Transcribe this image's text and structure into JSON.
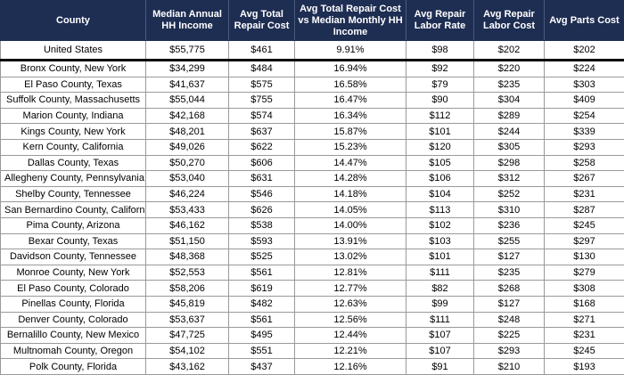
{
  "table": {
    "columns": [
      "County",
      "Median Annual HH Income",
      "Avg Total Repair Cost",
      "Avg Total Repair Cost vs Median Monthly HH Income",
      "Avg Repair Labor Rate",
      "Avg Repair Labor Cost",
      "Avg Parts Cost"
    ],
    "summary": [
      "United States",
      "$55,775",
      "$461",
      "9.91%",
      "$98",
      "$202",
      "$202"
    ],
    "rows": [
      [
        "Bronx County, New York",
        "$34,299",
        "$484",
        "16.94%",
        "$92",
        "$220",
        "$224"
      ],
      [
        "El Paso County, Texas",
        "$41,637",
        "$575",
        "16.58%",
        "$79",
        "$235",
        "$303"
      ],
      [
        "Suffolk County, Massachusetts",
        "$55,044",
        "$755",
        "16.47%",
        "$90",
        "$304",
        "$409"
      ],
      [
        "Marion County, Indiana",
        "$42,168",
        "$574",
        "16.34%",
        "$112",
        "$289",
        "$254"
      ],
      [
        "Kings County, New York",
        "$48,201",
        "$637",
        "15.87%",
        "$101",
        "$244",
        "$339"
      ],
      [
        "Kern County, California",
        "$49,026",
        "$622",
        "15.23%",
        "$120",
        "$305",
        "$293"
      ],
      [
        "Dallas County, Texas",
        "$50,270",
        "$606",
        "14.47%",
        "$105",
        "$298",
        "$258"
      ],
      [
        "Allegheny County, Pennsylvania",
        "$53,040",
        "$631",
        "14.28%",
        "$106",
        "$312",
        "$267"
      ],
      [
        "Shelby County, Tennessee",
        "$46,224",
        "$546",
        "14.18%",
        "$104",
        "$252",
        "$231"
      ],
      [
        "San Bernardino County, California",
        "$53,433",
        "$626",
        "14.05%",
        "$113",
        "$310",
        "$287"
      ],
      [
        "Pima County, Arizona",
        "$46,162",
        "$538",
        "14.00%",
        "$102",
        "$236",
        "$245"
      ],
      [
        "Bexar County, Texas",
        "$51,150",
        "$593",
        "13.91%",
        "$103",
        "$255",
        "$297"
      ],
      [
        "Davidson County, Tennessee",
        "$48,368",
        "$525",
        "13.02%",
        "$101",
        "$127",
        "$130"
      ],
      [
        "Monroe County, New York",
        "$52,553",
        "$561",
        "12.81%",
        "$111",
        "$235",
        "$279"
      ],
      [
        "El Paso County, Colorado",
        "$58,206",
        "$619",
        "12.77%",
        "$82",
        "$268",
        "$308"
      ],
      [
        "Pinellas County, Florida",
        "$45,819",
        "$482",
        "12.63%",
        "$99",
        "$127",
        "$168"
      ],
      [
        "Denver County, Colorado",
        "$53,637",
        "$561",
        "12.56%",
        "$111",
        "$248",
        "$271"
      ],
      [
        "Bernalillo County, New Mexico",
        "$47,725",
        "$495",
        "12.44%",
        "$107",
        "$225",
        "$231"
      ],
      [
        "Multnomah County, Oregon",
        "$54,102",
        "$551",
        "12.21%",
        "$107",
        "$293",
        "$245"
      ],
      [
        "Polk County, Florida",
        "$43,162",
        "$437",
        "12.16%",
        "$91",
        "$210",
        "$193"
      ]
    ]
  }
}
